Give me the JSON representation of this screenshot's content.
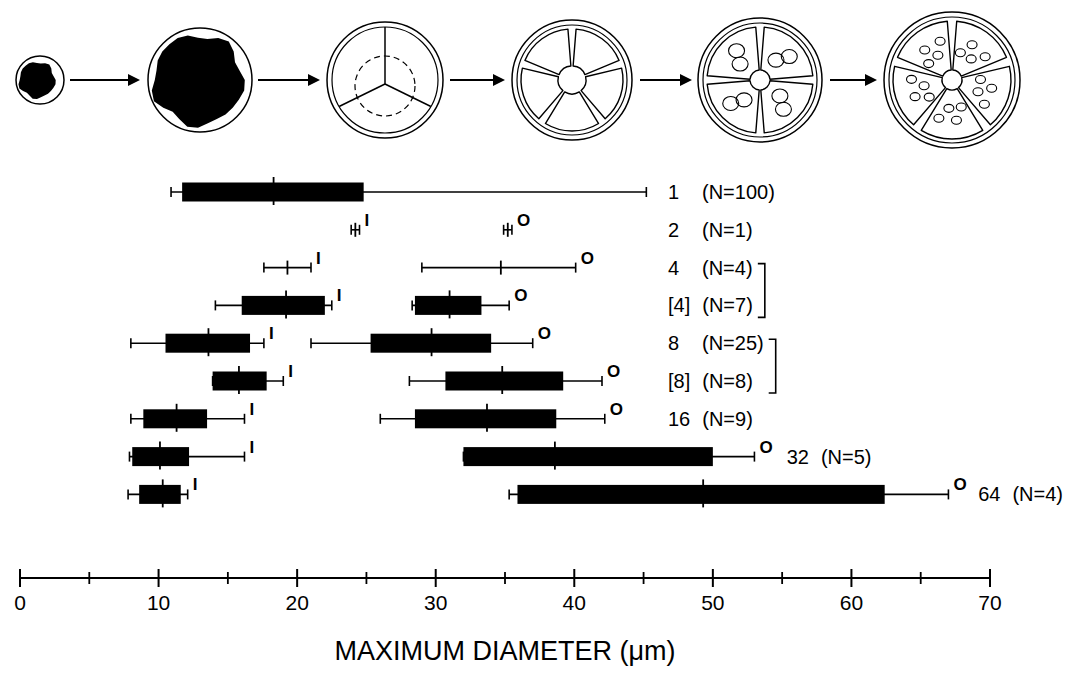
{
  "chart_data": {
    "type": "range",
    "orientation": "horizontal",
    "x_label": "MAXIMUM DIAMETER (μm)",
    "categories": [
      "1",
      "2",
      "4",
      "[4]",
      "8",
      "[8]",
      "16",
      "32",
      "64"
    ],
    "n_labels": [
      "(N=100)",
      "(N=1)",
      "(N=4)",
      "(N=7)",
      "(N=25)",
      "(N=8)",
      "(N=9)",
      "(N=5)",
      "(N=4)"
    ],
    "xlim": [
      0,
      70
    ],
    "xticks": [
      0,
      10,
      20,
      30,
      40,
      50,
      60,
      70
    ],
    "minor_xticks": [
      5,
      15,
      25,
      35,
      45,
      55,
      65
    ],
    "color": "#000000",
    "series": [
      {
        "name": "I",
        "color": "#000000",
        "values": [
          18.3,
          24.2,
          19.3,
          19.2,
          13.6,
          15.8,
          11.3,
          10.1,
          10.3
        ],
        "box_low": [
          11.7,
          null,
          null,
          16.0,
          10.5,
          13.9,
          8.9,
          8.1,
          8.6
        ],
        "box_high": [
          24.8,
          null,
          null,
          22.0,
          16.6,
          17.8,
          13.5,
          12.2,
          11.6
        ],
        "whisker_low": [
          10.9,
          23.9,
          17.6,
          14.1,
          8.0,
          13.9,
          8.0,
          7.9,
          7.8
        ],
        "whisker_high": [
          45.2,
          24.5,
          21.0,
          22.5,
          17.6,
          19.0,
          16.2,
          16.2,
          12.1
        ],
        "value_labels": [
          null,
          "I",
          "I",
          "I",
          "I",
          "I",
          "I",
          "I",
          "I"
        ]
      },
      {
        "name": "O",
        "color": "#000000",
        "values": [
          null,
          35.2,
          34.7,
          31.0,
          29.7,
          34.8,
          33.7,
          38.6,
          49.3
        ],
        "box_low": [
          null,
          null,
          null,
          28.5,
          25.3,
          30.7,
          28.5,
          32.0,
          35.9
        ],
        "box_high": [
          null,
          null,
          null,
          33.3,
          34.0,
          39.2,
          38.7,
          50.0,
          62.4
        ],
        "whisker_low": [
          null,
          34.9,
          29.0,
          28.3,
          21.0,
          28.1,
          26.0,
          32.0,
          35.3
        ],
        "whisker_high": [
          null,
          35.5,
          40.1,
          35.3,
          37.0,
          42.0,
          42.2,
          53.0,
          67.0
        ],
        "value_labels": [
          null,
          "O",
          "O",
          "O",
          "O",
          "O",
          "O",
          "O",
          "O"
        ]
      }
    ]
  }
}
